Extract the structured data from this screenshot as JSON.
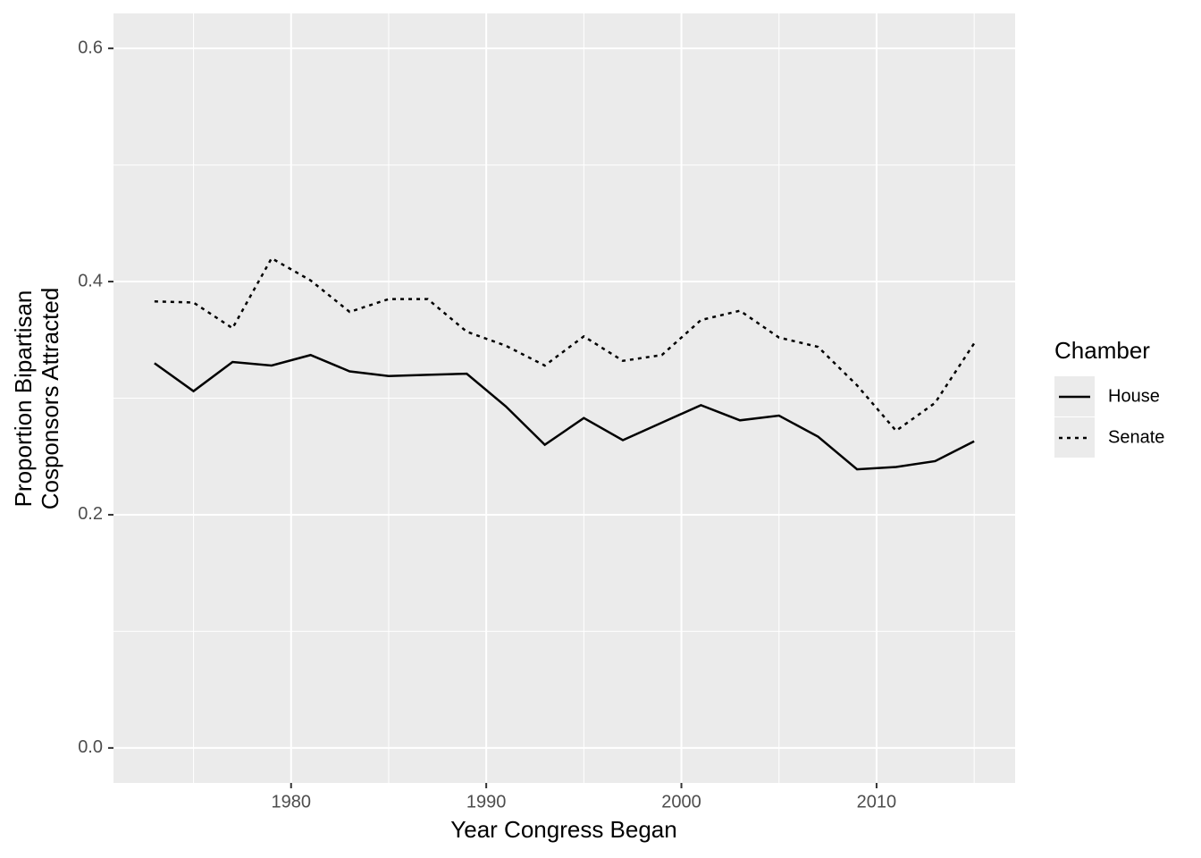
{
  "chart_data": {
    "type": "line",
    "xlabel": "Year Congress Began",
    "ylabel": [
      "Proportion Bipartisan",
      "Cosponsors Attracted"
    ],
    "x": [
      1973,
      1975,
      1977,
      1979,
      1981,
      1983,
      1985,
      1987,
      1989,
      1991,
      1993,
      1995,
      1997,
      1999,
      2001,
      2003,
      2005,
      2007,
      2009,
      2011,
      2013,
      2015
    ],
    "series": [
      {
        "name": "House",
        "color": "#000000",
        "dash": "solid",
        "values": [
          0.33,
          0.306,
          0.331,
          0.328,
          0.337,
          0.323,
          0.319,
          0.32,
          0.321,
          0.293,
          0.26,
          0.283,
          0.264,
          0.279,
          0.294,
          0.281,
          0.285,
          0.267,
          0.239,
          0.241,
          0.246,
          0.263
        ]
      },
      {
        "name": "Senate",
        "color": "#000000",
        "dash": "dotted",
        "values": [
          0.383,
          0.382,
          0.36,
          0.42,
          0.401,
          0.374,
          0.385,
          0.385,
          0.357,
          0.345,
          0.328,
          0.353,
          0.332,
          0.337,
          0.367,
          0.375,
          0.352,
          0.344,
          0.311,
          0.272,
          0.296,
          0.347
        ]
      }
    ],
    "xlim": [
      1970.9,
      2017.1
    ],
    "ylim": [
      -0.03,
      0.63
    ],
    "xticks": [
      1980,
      1990,
      2000,
      2010
    ],
    "yticks": [
      {
        "value": 0,
        "label": "0.0"
      },
      0.2,
      0.4,
      0.6
    ],
    "xminor_ticks": [
      1975,
      1985,
      1995,
      2005,
      2015
    ],
    "yminor_ticks": [
      0.1,
      0.3,
      0.5
    ],
    "grid": true,
    "legend_title": "Chamber",
    "legend_position": "right"
  }
}
